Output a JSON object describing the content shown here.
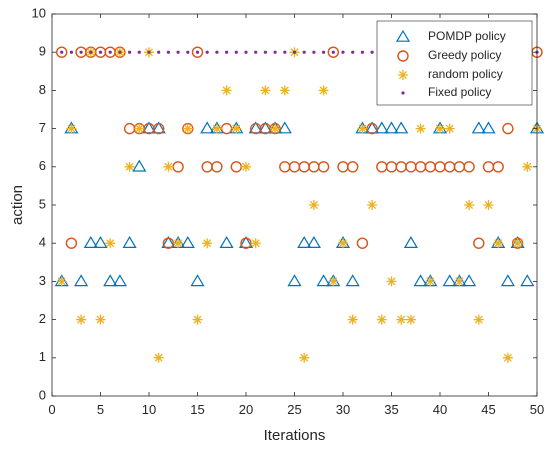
{
  "chart_data": {
    "type": "scatter",
    "xlabel": "Iterations",
    "ylabel": "action",
    "xlim": [
      0,
      50
    ],
    "ylim": [
      0,
      10
    ],
    "xticks": [
      0,
      5,
      10,
      15,
      20,
      25,
      30,
      35,
      40,
      45,
      50
    ],
    "yticks": [
      0,
      1,
      2,
      3,
      4,
      5,
      6,
      7,
      8,
      9,
      10
    ],
    "grid": false,
    "legend_position": "top-right",
    "series": [
      {
        "name": "POMDP policy",
        "marker": "triangle-open",
        "color": "#0072BD",
        "x": [
          1,
          2,
          3,
          4,
          5,
          6,
          7,
          8,
          9,
          10,
          11,
          12,
          13,
          14,
          15,
          16,
          17,
          18,
          19,
          20,
          21,
          22,
          23,
          24,
          25,
          26,
          27,
          28,
          29,
          30,
          31,
          32,
          33,
          34,
          35,
          36,
          37,
          38,
          39,
          40,
          41,
          42,
          43,
          44,
          45,
          46,
          47,
          48,
          49,
          50
        ],
        "y": [
          3,
          7,
          3,
          4,
          4,
          3,
          3,
          4,
          6,
          7,
          7,
          4,
          4,
          4,
          3,
          7,
          7,
          4,
          7,
          4,
          7,
          7,
          7,
          7,
          3,
          4,
          4,
          3,
          3,
          4,
          3,
          7,
          7,
          7,
          7,
          7,
          4,
          3,
          3,
          7,
          3,
          3,
          3,
          7,
          7,
          4,
          3,
          4,
          3,
          7
        ]
      },
      {
        "name": "Greedy policy",
        "marker": "circle-open",
        "color": "#D95319",
        "x": [
          1,
          2,
          3,
          4,
          5,
          6,
          7,
          8,
          9,
          10,
          11,
          12,
          13,
          14,
          15,
          16,
          17,
          18,
          19,
          20,
          21,
          22,
          23,
          24,
          25,
          26,
          27,
          28,
          29,
          30,
          31,
          32,
          33,
          34,
          35,
          36,
          37,
          38,
          39,
          40,
          41,
          42,
          43,
          44,
          45,
          46,
          47,
          48,
          49,
          50
        ],
        "y": [
          9,
          4,
          9,
          9,
          9,
          9,
          9,
          7,
          7,
          7,
          7,
          4,
          6,
          7,
          9,
          6,
          6,
          7,
          6,
          4,
          7,
          7,
          7,
          6,
          6,
          6,
          6,
          6,
          9,
          6,
          6,
          4,
          7,
          6,
          6,
          6,
          6,
          6,
          6,
          6,
          6,
          6,
          6,
          4,
          6,
          6,
          7,
          4,
          9,
          9
        ]
      },
      {
        "name": "random policy",
        "marker": "asterisk",
        "color": "#EDB120",
        "x": [
          1,
          2,
          3,
          4,
          5,
          6,
          7,
          8,
          9,
          10,
          11,
          12,
          13,
          14,
          15,
          16,
          17,
          18,
          19,
          20,
          21,
          22,
          23,
          24,
          25,
          26,
          27,
          28,
          29,
          30,
          31,
          32,
          33,
          34,
          35,
          36,
          37,
          38,
          39,
          40,
          41,
          42,
          43,
          44,
          45,
          46,
          47,
          48,
          49,
          50
        ],
        "y": [
          3,
          7,
          2,
          9,
          2,
          4,
          9,
          6,
          7,
          9,
          1,
          6,
          4,
          7,
          2,
          4,
          7,
          8,
          7,
          6,
          4,
          8,
          7,
          8,
          9,
          1,
          5,
          8,
          3,
          4,
          2,
          7,
          5,
          2,
          3,
          2,
          2,
          7,
          3,
          7,
          7,
          3,
          5,
          2,
          5,
          4,
          1,
          4,
          6,
          7
        ]
      },
      {
        "name": "Fixed policy",
        "marker": "dot",
        "color": "#7E2F8E",
        "x": [
          1,
          2,
          3,
          4,
          5,
          6,
          7,
          8,
          9,
          10,
          11,
          12,
          13,
          14,
          15,
          16,
          17,
          18,
          19,
          20,
          21,
          22,
          23,
          24,
          25,
          26,
          27,
          28,
          29,
          30,
          31,
          32,
          33,
          34,
          35,
          36,
          37,
          38,
          39,
          40,
          41,
          42,
          43,
          44,
          45,
          46,
          47,
          48,
          49,
          50
        ],
        "y": [
          9,
          9,
          9,
          9,
          9,
          9,
          9,
          9,
          9,
          9,
          9,
          9,
          9,
          9,
          9,
          9,
          9,
          9,
          9,
          9,
          9,
          9,
          9,
          9,
          9,
          9,
          9,
          9,
          9,
          9,
          9,
          9,
          9,
          9,
          9,
          9,
          9,
          9,
          9,
          9,
          9,
          9,
          9,
          9,
          9,
          9,
          9,
          9,
          9,
          9
        ]
      }
    ]
  }
}
